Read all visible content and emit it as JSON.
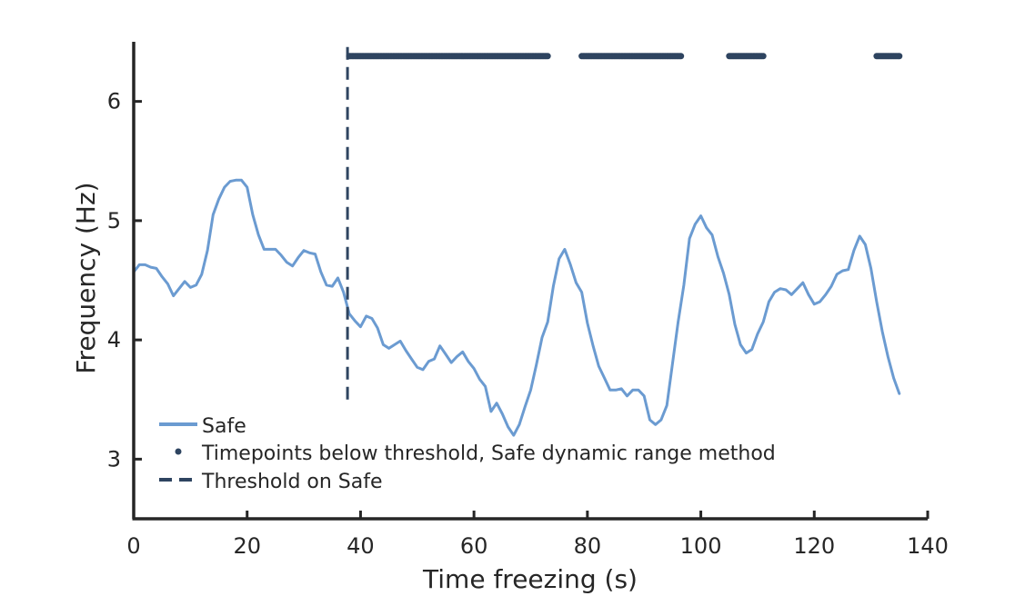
{
  "chart_data": {
    "type": "line",
    "title": "",
    "xlabel": "Time freezing (s)",
    "ylabel": "Frequency (Hz)",
    "xlim": [
      0,
      140
    ],
    "ylim": [
      2.5,
      6.5
    ],
    "xticks": [
      0,
      20,
      40,
      60,
      80,
      100,
      120,
      140
    ],
    "xtick_labels": [
      "0",
      "20",
      "40",
      "60",
      "80",
      "100",
      "120",
      "140"
    ],
    "yticks": [
      3,
      4,
      5,
      6
    ],
    "ytick_labels": [
      "3",
      "4",
      "5",
      "6"
    ],
    "grid": false,
    "legend_position": "lower-left",
    "colors": {
      "safe": "#6b9bd1",
      "threshold": "#2e4460",
      "axis": "#262626"
    },
    "series": [
      {
        "name": "Safe",
        "style": "solid-line",
        "x": [
          0,
          1,
          2,
          3,
          4,
          5,
          6,
          7,
          8,
          9,
          10,
          11,
          12,
          13,
          14,
          15,
          16,
          17,
          18,
          19,
          20,
          21,
          22,
          23,
          24,
          25,
          26,
          27,
          28,
          29,
          30,
          31,
          32,
          33,
          34,
          35,
          36,
          37,
          38,
          39,
          40,
          41,
          42,
          43,
          44,
          45,
          46,
          47,
          48,
          49,
          50,
          51,
          52,
          53,
          54,
          55,
          56,
          57,
          58,
          59,
          60,
          61,
          62,
          63,
          64,
          65,
          66,
          67,
          68,
          69,
          70,
          71,
          72,
          73,
          74,
          75,
          76,
          77,
          78,
          79,
          80,
          81,
          82,
          83,
          84,
          85,
          86,
          87,
          88,
          89,
          90,
          91,
          92,
          93,
          94,
          95,
          96,
          97,
          98,
          99,
          100,
          101,
          102,
          103,
          104,
          105,
          106,
          107,
          108,
          109,
          110,
          111,
          112,
          113,
          114,
          115,
          116,
          117,
          118,
          119,
          120,
          121,
          122,
          123,
          124,
          125,
          126,
          127,
          128,
          129,
          130,
          131,
          132,
          133,
          134,
          135
        ],
        "y": [
          4.57,
          4.63,
          4.63,
          4.61,
          4.6,
          4.53,
          4.47,
          4.37,
          4.43,
          4.49,
          4.44,
          4.46,
          4.55,
          4.75,
          5.05,
          5.18,
          5.28,
          5.33,
          5.34,
          5.34,
          5.28,
          5.05,
          4.88,
          4.76,
          4.76,
          4.76,
          4.71,
          4.65,
          4.62,
          4.69,
          4.75,
          4.73,
          4.72,
          4.57,
          4.46,
          4.45,
          4.52,
          4.4,
          4.22,
          4.16,
          4.11,
          4.2,
          4.18,
          4.1,
          3.96,
          3.93,
          3.96,
          3.99,
          3.91,
          3.84,
          3.77,
          3.75,
          3.82,
          3.84,
          3.95,
          3.88,
          3.81,
          3.86,
          3.9,
          3.82,
          3.76,
          3.67,
          3.61,
          3.4,
          3.47,
          3.38,
          3.27,
          3.2,
          3.29,
          3.44,
          3.58,
          3.79,
          4.02,
          4.15,
          4.45,
          4.68,
          4.76,
          4.63,
          4.48,
          4.4,
          4.14,
          3.95,
          3.78,
          3.68,
          3.58,
          3.58,
          3.59,
          3.53,
          3.58,
          3.58,
          3.53,
          3.33,
          3.29,
          3.33,
          3.45,
          3.8,
          4.15,
          4.46,
          4.85,
          4.97,
          5.04,
          4.94,
          4.88,
          4.7,
          4.56,
          4.38,
          4.13,
          3.96,
          3.89,
          3.92,
          4.05,
          4.15,
          4.32,
          4.4,
          4.43,
          4.42,
          4.38,
          4.43,
          4.48,
          4.38,
          4.3,
          4.32,
          4.38,
          4.45,
          4.55,
          4.58,
          4.59,
          4.75,
          4.87,
          4.8,
          4.6,
          4.32,
          4.07,
          3.86,
          3.68,
          3.55
        ]
      },
      {
        "name": "Timepoints below threshold, Safe dynamic range method",
        "style": "dots",
        "y_value": 6.38,
        "segments": [
          [
            38,
            73
          ],
          [
            79,
            96.5
          ],
          [
            105,
            111
          ],
          [
            131,
            135
          ]
        ]
      },
      {
        "name": "Threshold on Safe",
        "style": "dashed-vertical",
        "x_value": 37.7,
        "y_range": [
          3.5,
          6.5
        ]
      }
    ]
  }
}
